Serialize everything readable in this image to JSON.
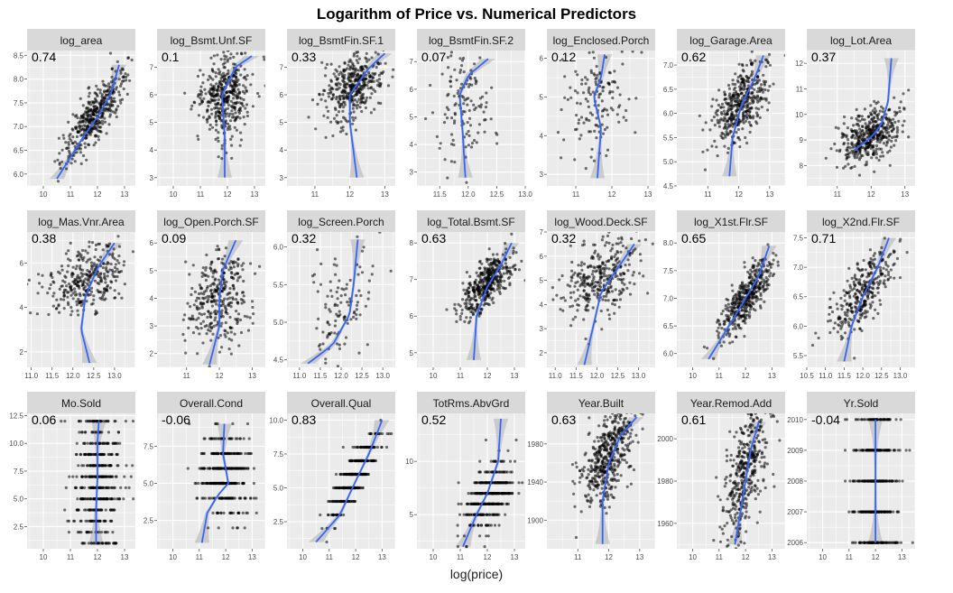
{
  "title": "Logarithm of Price vs. Numerical Predictors",
  "xlabel": "log(price)",
  "colors": {
    "panel_bg": "#ebebeb",
    "strip_bg": "#d9d9d9",
    "grid": "#ffffff",
    "points": "#000000",
    "smooth": "#3366ff",
    "band": "#bfbfbf"
  },
  "chart_data": [
    {
      "type": "scatter",
      "facet": "log_area",
      "corr": "0.74",
      "xlim": [
        9.4,
        13.4
      ],
      "ylim": [
        5.75,
        8.6
      ],
      "xticks": [
        "10",
        "11",
        "12",
        "13"
      ],
      "yticks": [
        "5.5",
        "6.0",
        "6.5",
        "7.0",
        "7.5",
        "8.0",
        "8.5"
      ],
      "trend": [
        [
          10.5,
          5.9
        ],
        [
          11.5,
          6.8
        ],
        [
          12.0,
          7.2
        ],
        [
          12.5,
          7.7
        ],
        [
          12.8,
          8.3
        ]
      ],
      "cloud": {
        "cx": 11.9,
        "cy": 7.25,
        "sx": 0.55,
        "sy": 0.45,
        "rho": 0.8,
        "n": 420
      }
    },
    {
      "type": "scatter",
      "facet": "log_Bsmt.Unf.SF",
      "corr": "0.1",
      "xlim": [
        9.4,
        13.4
      ],
      "ylim": [
        2.7,
        7.6
      ],
      "xticks": [
        "10",
        "11",
        "12",
        "13"
      ],
      "yticks": [
        "3",
        "4",
        "5",
        "6",
        "7"
      ],
      "trend": [
        [
          11.9,
          3.0
        ],
        [
          11.9,
          4.5
        ],
        [
          11.8,
          6.0
        ],
        [
          12.3,
          7.0
        ],
        [
          12.9,
          7.4
        ]
      ],
      "cloud": {
        "cx": 11.9,
        "cy": 5.9,
        "sx": 0.5,
        "sy": 0.8,
        "rho": 0.2,
        "n": 420
      }
    },
    {
      "type": "scatter",
      "facet": "log_BsmtFin.SF.1",
      "corr": "0.33",
      "xlim": [
        10.2,
        13.3
      ],
      "ylim": [
        2.7,
        7.6
      ],
      "xticks": [
        "11",
        "12",
        "13"
      ],
      "yticks": [
        "3",
        "4",
        "5",
        "6",
        "7"
      ],
      "trend": [
        [
          12.2,
          3.0
        ],
        [
          12.0,
          5.0
        ],
        [
          12.0,
          6.0
        ],
        [
          12.5,
          6.9
        ],
        [
          13.0,
          7.5
        ]
      ],
      "cloud": {
        "cx": 12.1,
        "cy": 6.3,
        "sx": 0.45,
        "sy": 0.6,
        "rho": 0.4,
        "n": 400
      }
    },
    {
      "type": "scatter",
      "facet": "log_BsmtFin.SF.2",
      "corr": "0.07",
      "xlim": [
        11.1,
        13.0
      ],
      "ylim": [
        2.5,
        7.4
      ],
      "xticks": [
        "11.5",
        "12.0",
        "12.5",
        "13.0"
      ],
      "yticks": [
        "3",
        "4",
        "5",
        "6",
        "7"
      ],
      "trend": [
        [
          11.95,
          2.8
        ],
        [
          11.9,
          4.5
        ],
        [
          11.85,
          5.8
        ],
        [
          12.0,
          6.5
        ],
        [
          12.35,
          7.1
        ]
      ],
      "cloud": {
        "cx": 11.9,
        "cy": 5.5,
        "sx": 0.25,
        "sy": 1.1,
        "rho": 0.05,
        "n": 130
      }
    },
    {
      "type": "scatter",
      "facet": "log_Enclosed.Porch",
      "corr": "0.12",
      "xlim": [
        10.2,
        13.2
      ],
      "ylim": [
        2.7,
        6.2
      ],
      "xticks": [
        "11",
        "12",
        "13"
      ],
      "yticks": [
        "3",
        "4",
        "5",
        "6"
      ],
      "trend": [
        [
          11.6,
          2.9
        ],
        [
          11.7,
          4.2
        ],
        [
          11.5,
          5.0
        ],
        [
          11.7,
          5.5
        ],
        [
          11.8,
          6.1
        ]
      ],
      "cloud": {
        "cx": 11.6,
        "cy": 4.9,
        "sx": 0.4,
        "sy": 0.65,
        "rho": 0.1,
        "n": 140
      }
    },
    {
      "type": "scatter",
      "facet": "log_Garage.Area",
      "corr": "0.62",
      "xlim": [
        10.0,
        13.5
      ],
      "ylim": [
        4.5,
        7.3
      ],
      "xticks": [
        "11",
        "12",
        "13"
      ],
      "yticks": [
        "4.5",
        "5.0",
        "5.5",
        "6.0",
        "6.5",
        "7.0"
      ],
      "trend": [
        [
          11.7,
          4.7
        ],
        [
          11.8,
          5.5
        ],
        [
          12.1,
          6.2
        ],
        [
          12.5,
          6.7
        ],
        [
          12.8,
          7.2
        ]
      ],
      "cloud": {
        "cx": 12.05,
        "cy": 6.2,
        "sx": 0.45,
        "sy": 0.45,
        "rho": 0.65,
        "n": 420
      }
    },
    {
      "type": "scatter",
      "facet": "log_Lot.Area",
      "corr": "0.37",
      "xlim": [
        10.1,
        13.3
      ],
      "ylim": [
        7.2,
        12.5
      ],
      "xticks": [
        "11",
        "12",
        "13"
      ],
      "yticks": [
        "8",
        "9",
        "10",
        "11",
        "12"
      ],
      "trend": [
        [
          11.5,
          8.6
        ],
        [
          12.0,
          9.1
        ],
        [
          12.3,
          9.6
        ],
        [
          12.5,
          10.5
        ],
        [
          12.6,
          12.2
        ]
      ],
      "cloud": {
        "cx": 12.0,
        "cy": 9.2,
        "sx": 0.45,
        "sy": 0.55,
        "rho": 0.45,
        "n": 420
      }
    },
    {
      "type": "scatter",
      "facet": "log_Mas.Vnr.Area",
      "corr": "0.38",
      "xlim": [
        10.9,
        13.5
      ],
      "ylim": [
        1.3,
        7.4
      ],
      "xticks": [
        "11.0",
        "11.5",
        "12.0",
        "12.5",
        "13.0"
      ],
      "yticks": [
        "2",
        "4",
        "6"
      ],
      "trend": [
        [
          12.4,
          1.5
        ],
        [
          12.2,
          3.0
        ],
        [
          12.3,
          4.5
        ],
        [
          12.6,
          5.8
        ],
        [
          13.0,
          6.9
        ]
      ],
      "cloud": {
        "cx": 12.3,
        "cy": 5.2,
        "sx": 0.45,
        "sy": 0.8,
        "rho": 0.35,
        "n": 330
      }
    },
    {
      "type": "scatter",
      "facet": "log_Open.Porch.SF",
      "corr": "0.09",
      "xlim": [
        10.1,
        13.4
      ],
      "ylim": [
        1.5,
        6.4
      ],
      "xticks": [
        "11",
        "12",
        "13"
      ],
      "yticks": [
        "2",
        "3",
        "4",
        "5",
        "6"
      ],
      "trend": [
        [
          11.7,
          1.6
        ],
        [
          12.0,
          3.0
        ],
        [
          12.0,
          4.0
        ],
        [
          12.1,
          5.0
        ],
        [
          12.5,
          6.1
        ]
      ],
      "cloud": {
        "cx": 12.0,
        "cy": 4.0,
        "sx": 0.45,
        "sy": 0.8,
        "rho": 0.15,
        "n": 330
      }
    },
    {
      "type": "scatter",
      "facet": "log_Screen.Porch",
      "corr": "0.32",
      "xlim": [
        10.7,
        13.3
      ],
      "ylim": [
        4.4,
        6.2
      ],
      "xticks": [
        "11.0",
        "11.5",
        "12.0",
        "12.5",
        "13.0"
      ],
      "yticks": [
        "4.5",
        "5.0",
        "5.5",
        "6.0"
      ],
      "trend": [
        [
          11.2,
          4.45
        ],
        [
          11.8,
          4.7
        ],
        [
          12.2,
          5.1
        ],
        [
          12.3,
          5.5
        ],
        [
          12.4,
          6.1
        ]
      ],
      "cloud": {
        "cx": 12.0,
        "cy": 5.2,
        "sx": 0.4,
        "sy": 0.35,
        "rho": 0.25,
        "n": 110
      }
    },
    {
      "type": "scatter",
      "facet": "log_Total.Bsmt.SF",
      "corr": "0.63",
      "xlim": [
        9.4,
        13.4
      ],
      "ylim": [
        4.6,
        8.3
      ],
      "xticks": [
        "10",
        "11",
        "12",
        "13"
      ],
      "yticks": [
        "5",
        "6",
        "7",
        "8"
      ],
      "trend": [
        [
          11.5,
          4.8
        ],
        [
          11.6,
          6.0
        ],
        [
          12.0,
          6.8
        ],
        [
          12.5,
          7.4
        ],
        [
          12.9,
          8.0
        ]
      ],
      "cloud": {
        "cx": 12.0,
        "cy": 6.9,
        "sx": 0.5,
        "sy": 0.45,
        "rho": 0.7,
        "n": 420
      }
    },
    {
      "type": "scatter",
      "facet": "log_Wood.Deck.SF",
      "corr": "0.32",
      "xlim": [
        10.8,
        13.4
      ],
      "ylim": [
        1.4,
        7.0
      ],
      "xticks": [
        "11.0",
        "11.5",
        "12.0",
        "12.5",
        "13.0"
      ],
      "yticks": [
        "2",
        "3",
        "4",
        "5",
        "6",
        "7"
      ],
      "trend": [
        [
          11.7,
          1.5
        ],
        [
          11.9,
          3.0
        ],
        [
          12.1,
          4.5
        ],
        [
          12.5,
          5.5
        ],
        [
          12.9,
          6.5
        ]
      ],
      "cloud": {
        "cx": 12.1,
        "cy": 5.1,
        "sx": 0.45,
        "sy": 0.75,
        "rho": 0.3,
        "n": 330
      }
    },
    {
      "type": "scatter",
      "facet": "log_X1st.Flr.SF",
      "corr": "0.65",
      "xlim": [
        9.4,
        13.5
      ],
      "ylim": [
        5.75,
        8.2
      ],
      "xticks": [
        "10",
        "11",
        "12",
        "13"
      ],
      "yticks": [
        "6.0",
        "6.5",
        "7.0",
        "7.5",
        "8.0"
      ],
      "trend": [
        [
          10.6,
          5.9
        ],
        [
          11.5,
          6.6
        ],
        [
          12.0,
          7.0
        ],
        [
          12.5,
          7.4
        ],
        [
          12.9,
          7.95
        ]
      ],
      "cloud": {
        "cx": 12.0,
        "cy": 7.0,
        "sx": 0.5,
        "sy": 0.35,
        "rho": 0.75,
        "n": 420
      }
    },
    {
      "type": "scatter",
      "facet": "log_X2nd.Flr.SF",
      "corr": "0.71",
      "xlim": [
        10.5,
        13.4
      ],
      "ylim": [
        5.3,
        7.6
      ],
      "xticks": [
        "10.5",
        "11.0",
        "11.5",
        "12.0",
        "12.5",
        "13.0"
      ],
      "yticks": [
        "5.5",
        "6.0",
        "6.5",
        "7.0",
        "7.5"
      ],
      "trend": [
        [
          11.5,
          5.4
        ],
        [
          11.7,
          6.0
        ],
        [
          12.0,
          6.5
        ],
        [
          12.4,
          7.0
        ],
        [
          12.7,
          7.5
        ]
      ],
      "cloud": {
        "cx": 12.0,
        "cy": 6.6,
        "sx": 0.45,
        "sy": 0.4,
        "rho": 0.75,
        "n": 330
      }
    },
    {
      "type": "scatter",
      "facet": "Mo.Sold",
      "corr": "0.06",
      "xlim": [
        9.4,
        13.4
      ],
      "ylim": [
        0.5,
        12.7
      ],
      "xticks": [
        "10",
        "11",
        "12",
        "13"
      ],
      "yticks": [
        "2.5",
        "5.0",
        "7.5",
        "10.0",
        "12.5"
      ],
      "trend": [
        [
          11.95,
          1
        ],
        [
          11.95,
          4
        ],
        [
          12.0,
          7
        ],
        [
          12.0,
          10
        ],
        [
          12.05,
          12
        ]
      ],
      "levels": [
        1,
        2,
        3,
        4,
        5,
        6,
        7,
        8,
        9,
        10,
        11,
        12
      ],
      "cloud": {
        "cx": 12.0,
        "cy": 6.5,
        "sx": 0.42,
        "sy": 3.2,
        "rho": 0.0,
        "n": 480
      }
    },
    {
      "type": "scatter",
      "facet": "Overall.Cond",
      "corr": "-0.06",
      "xlim": [
        9.4,
        13.5
      ],
      "ylim": [
        0.6,
        9.7
      ],
      "xticks": [
        "10",
        "11",
        "12",
        "13"
      ],
      "yticks": [
        "2.5",
        "5.0",
        "7.5"
      ],
      "trend": [
        [
          11.1,
          1
        ],
        [
          11.3,
          3
        ],
        [
          11.7,
          4.2
        ],
        [
          12.1,
          5.0
        ],
        [
          11.9,
          7.0
        ],
        [
          11.95,
          9.0
        ]
      ],
      "levels": [
        1,
        2,
        3,
        4,
        5,
        6,
        7,
        8,
        9
      ],
      "cloud": {
        "cx": 12.0,
        "cy": 5.5,
        "sx": 0.45,
        "sy": 1.3,
        "rho": -0.05,
        "n": 420
      }
    },
    {
      "type": "scatter",
      "facet": "Overall.Qual",
      "corr": "0.83",
      "xlim": [
        9.4,
        13.5
      ],
      "ylim": [
        0.5,
        10.5
      ],
      "xticks": [
        "10",
        "11",
        "12",
        "13"
      ],
      "yticks": [
        "2.5",
        "5.0",
        "7.5",
        "10.0"
      ],
      "trend": [
        [
          10.5,
          1
        ],
        [
          11.4,
          3
        ],
        [
          12.0,
          5.5
        ],
        [
          12.5,
          7.5
        ],
        [
          13.0,
          10
        ]
      ],
      "levels": [
        1,
        2,
        3,
        4,
        5,
        6,
        7,
        8,
        9,
        10
      ],
      "cloud": {
        "cx": 12.0,
        "cy": 6.0,
        "sx": 0.45,
        "sy": 1.5,
        "rho": 0.85,
        "n": 420
      }
    },
    {
      "type": "scatter",
      "facet": "TotRms.AbvGrd",
      "corr": "0.52",
      "xlim": [
        9.4,
        13.4
      ],
      "ylim": [
        1.8,
        14.5
      ],
      "xticks": [
        "10",
        "11",
        "12",
        "13"
      ],
      "yticks": [
        "5",
        "10"
      ],
      "trend": [
        [
          11.1,
          2
        ],
        [
          11.6,
          5
        ],
        [
          12.0,
          7
        ],
        [
          12.4,
          10
        ],
        [
          12.5,
          14
        ]
      ],
      "levels": [
        2,
        3,
        4,
        5,
        6,
        7,
        8,
        9,
        10,
        11,
        12,
        13,
        14
      ],
      "cloud": {
        "cx": 12.0,
        "cy": 6.5,
        "sx": 0.45,
        "sy": 1.6,
        "rho": 0.55,
        "n": 420
      }
    },
    {
      "type": "scatter",
      "facet": "Year.Built",
      "corr": "0.63",
      "xlim": [
        10.0,
        13.5
      ],
      "ylim": [
        1870,
        2012
      ],
      "xticks": [
        "11",
        "12",
        "13"
      ],
      "yticks": [
        "1900",
        "1940",
        "1980"
      ],
      "trend": [
        [
          11.8,
          1875
        ],
        [
          11.8,
          1920
        ],
        [
          12.0,
          1960
        ],
        [
          12.4,
          1990
        ],
        [
          12.9,
          2008
        ]
      ],
      "cloud": {
        "cx": 12.0,
        "cy": 1970,
        "sx": 0.45,
        "sy": 28,
        "rho": 0.6,
        "n": 480
      }
    },
    {
      "type": "scatter",
      "facet": "Year.Remod.Add",
      "corr": "0.61",
      "xlim": [
        9.4,
        13.5
      ],
      "ylim": [
        1948,
        2012
      ],
      "xticks": [
        "10",
        "11",
        "12",
        "13"
      ],
      "yticks": [
        "1960",
        "1980",
        "2000"
      ],
      "trend": [
        [
          11.6,
          1950
        ],
        [
          11.8,
          1965
        ],
        [
          12.0,
          1980
        ],
        [
          12.2,
          1995
        ],
        [
          12.5,
          2008
        ]
      ],
      "cloud": {
        "cx": 12.0,
        "cy": 1985,
        "sx": 0.45,
        "sy": 18,
        "rho": 0.6,
        "n": 420
      }
    },
    {
      "type": "scatter",
      "facet": "Yr.Sold",
      "corr": "-0.04",
      "xlim": [
        9.4,
        13.5
      ],
      "ylim": [
        2005.8,
        2010.2
      ],
      "xticks": [
        "10",
        "11",
        "12",
        "13"
      ],
      "yticks": [
        "2006",
        "2007",
        "2008",
        "2009",
        "2010"
      ],
      "trend": [
        [
          12.0,
          2006
        ],
        [
          12.0,
          2007
        ],
        [
          12.0,
          2008
        ],
        [
          12.0,
          2009
        ],
        [
          12.0,
          2010
        ]
      ],
      "levels": [
        2006,
        2007,
        2008,
        2009,
        2010
      ],
      "cloud": {
        "cx": 12.0,
        "cy": 2008,
        "sx": 0.42,
        "sy": 1.4,
        "rho": 0.0,
        "n": 430
      }
    }
  ]
}
